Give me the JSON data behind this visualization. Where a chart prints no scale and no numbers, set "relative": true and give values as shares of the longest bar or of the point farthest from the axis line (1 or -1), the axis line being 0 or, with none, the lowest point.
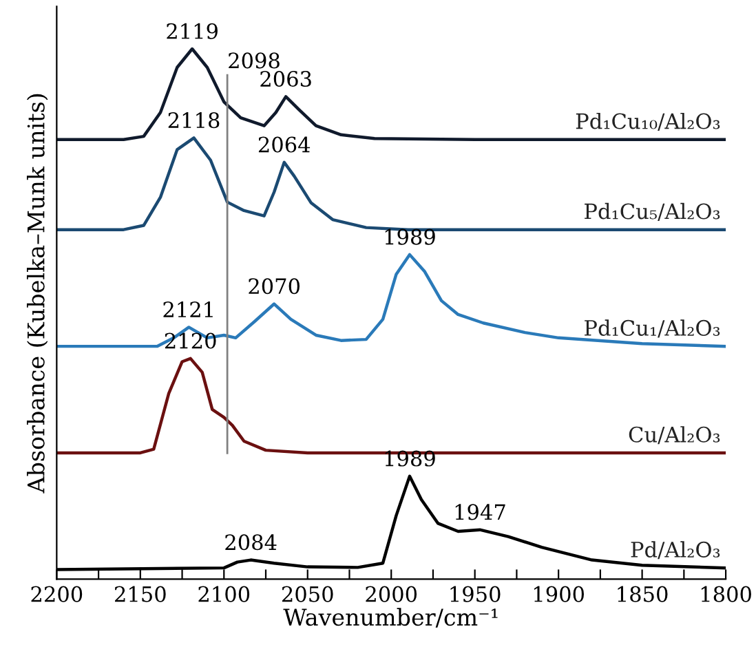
{
  "chart_data": {
    "type": "line",
    "relative": true,
    "xlabel": "Wavenumber/cm⁻¹",
    "ylabel": "Absorbance (Kubelka–Munk units)",
    "xlim": [
      2200,
      1800
    ],
    "xticks": [
      2200,
      {
        "value": 2175,
        "label": null
      },
      2150,
      {
        "value": 2125,
        "label": null
      },
      2100,
      {
        "value": 2075,
        "label": null
      },
      2050,
      {
        "value": 2025,
        "label": null
      },
      2000,
      {
        "value": 1975,
        "label": null
      },
      1950,
      {
        "value": 1925,
        "label": null
      },
      1900,
      {
        "value": 1875,
        "label": null
      },
      1850,
      {
        "value": 1825,
        "label": null
      },
      1800
    ],
    "grid": false,
    "legend": false,
    "tick_labels": "x",
    "line_style": "solid",
    "marker": "none",
    "series": [
      {
        "name": "Pd₁Cu₁₀/Al₂O₃",
        "color": "#101a2c",
        "x": [
          2200,
          2160,
          2148,
          2138,
          2128,
          2119,
          2110,
          2100,
          2090,
          2076,
          2069,
          2063,
          2055,
          2045,
          2030,
          2010,
          1950,
          1800
        ],
        "values": [
          0.829,
          0.829,
          0.835,
          0.88,
          0.965,
          1.0,
          0.965,
          0.9,
          0.87,
          0.855,
          0.88,
          0.91,
          0.885,
          0.855,
          0.838,
          0.831,
          0.829,
          0.829
        ]
      },
      {
        "name": "Pd₁Cu₅/Al₂O₃",
        "color": "#1b4a72",
        "x": [
          2200,
          2160,
          2148,
          2138,
          2128,
          2118,
          2108,
          2098,
          2088,
          2076,
          2070,
          2064,
          2058,
          2048,
          2035,
          2015,
          1990,
          1800
        ],
        "values": [
          0.659,
          0.659,
          0.667,
          0.72,
          0.81,
          0.832,
          0.79,
          0.711,
          0.695,
          0.685,
          0.73,
          0.786,
          0.76,
          0.71,
          0.678,
          0.663,
          0.659,
          0.659
        ]
      },
      {
        "name": "Pd₁Cu₁/Al₂O₃",
        "color": "#2a7ab9",
        "x": [
          2200,
          2140,
          2130,
          2121,
          2110,
          2100,
          2093,
          2082,
          2070,
          2060,
          2045,
          2030,
          2015,
          2005,
          1997,
          1989,
          1980,
          1970,
          1960,
          1945,
          1920,
          1900,
          1850,
          1800
        ],
        "values": [
          0.439,
          0.439,
          0.455,
          0.475,
          0.455,
          0.46,
          0.455,
          0.485,
          0.519,
          0.49,
          0.46,
          0.45,
          0.452,
          0.49,
          0.575,
          0.612,
          0.58,
          0.525,
          0.499,
          0.483,
          0.465,
          0.455,
          0.444,
          0.439
        ]
      },
      {
        "name": "Cu/Al₂O₃",
        "color": "#6b1010",
        "x": [
          2200,
          2150,
          2142,
          2133,
          2125,
          2120,
          2113,
          2107,
          2100,
          2095,
          2088,
          2075,
          2050,
          1800
        ],
        "values": [
          0.238,
          0.238,
          0.245,
          0.35,
          0.41,
          0.416,
          0.39,
          0.32,
          0.305,
          0.29,
          0.26,
          0.243,
          0.238,
          0.238
        ]
      },
      {
        "name": "Pd/Al₂O₃",
        "color": "#000000",
        "x": [
          2200,
          2100,
          2092,
          2084,
          2070,
          2050,
          2020,
          2005,
          1997,
          1989,
          1982,
          1972,
          1960,
          1947,
          1930,
          1910,
          1880,
          1850,
          1800
        ],
        "values": [
          0.018,
          0.021,
          0.032,
          0.036,
          0.03,
          0.023,
          0.022,
          0.03,
          0.12,
          0.194,
          0.15,
          0.105,
          0.09,
          0.093,
          0.08,
          0.06,
          0.036,
          0.026,
          0.021
        ]
      }
    ],
    "ref_lines": [
      {
        "axis": "x",
        "value": 2098,
        "label": "2098",
        "color": "#808080"
      }
    ],
    "annotations": [
      {
        "text": "2119",
        "x": 2119,
        "y": 1.0
      },
      {
        "text": "2063",
        "x": 2063,
        "y": 0.91
      },
      {
        "text": "2118",
        "x": 2118,
        "y": 0.832
      },
      {
        "text": "2064",
        "x": 2064,
        "y": 0.786
      },
      {
        "text": "2121",
        "x": 2121,
        "y": 0.475
      },
      {
        "text": "2070",
        "x": 2070,
        "y": 0.519
      },
      {
        "text": "1989",
        "x": 1989,
        "y": 0.612
      },
      {
        "text": "2120",
        "x": 2120,
        "y": 0.416
      },
      {
        "text": "2084",
        "x": 2084,
        "y": 0.036
      },
      {
        "text": "1989",
        "x": 1989,
        "y": 0.194
      },
      {
        "text": "1947",
        "x": 1947,
        "y": 0.093
      }
    ]
  }
}
